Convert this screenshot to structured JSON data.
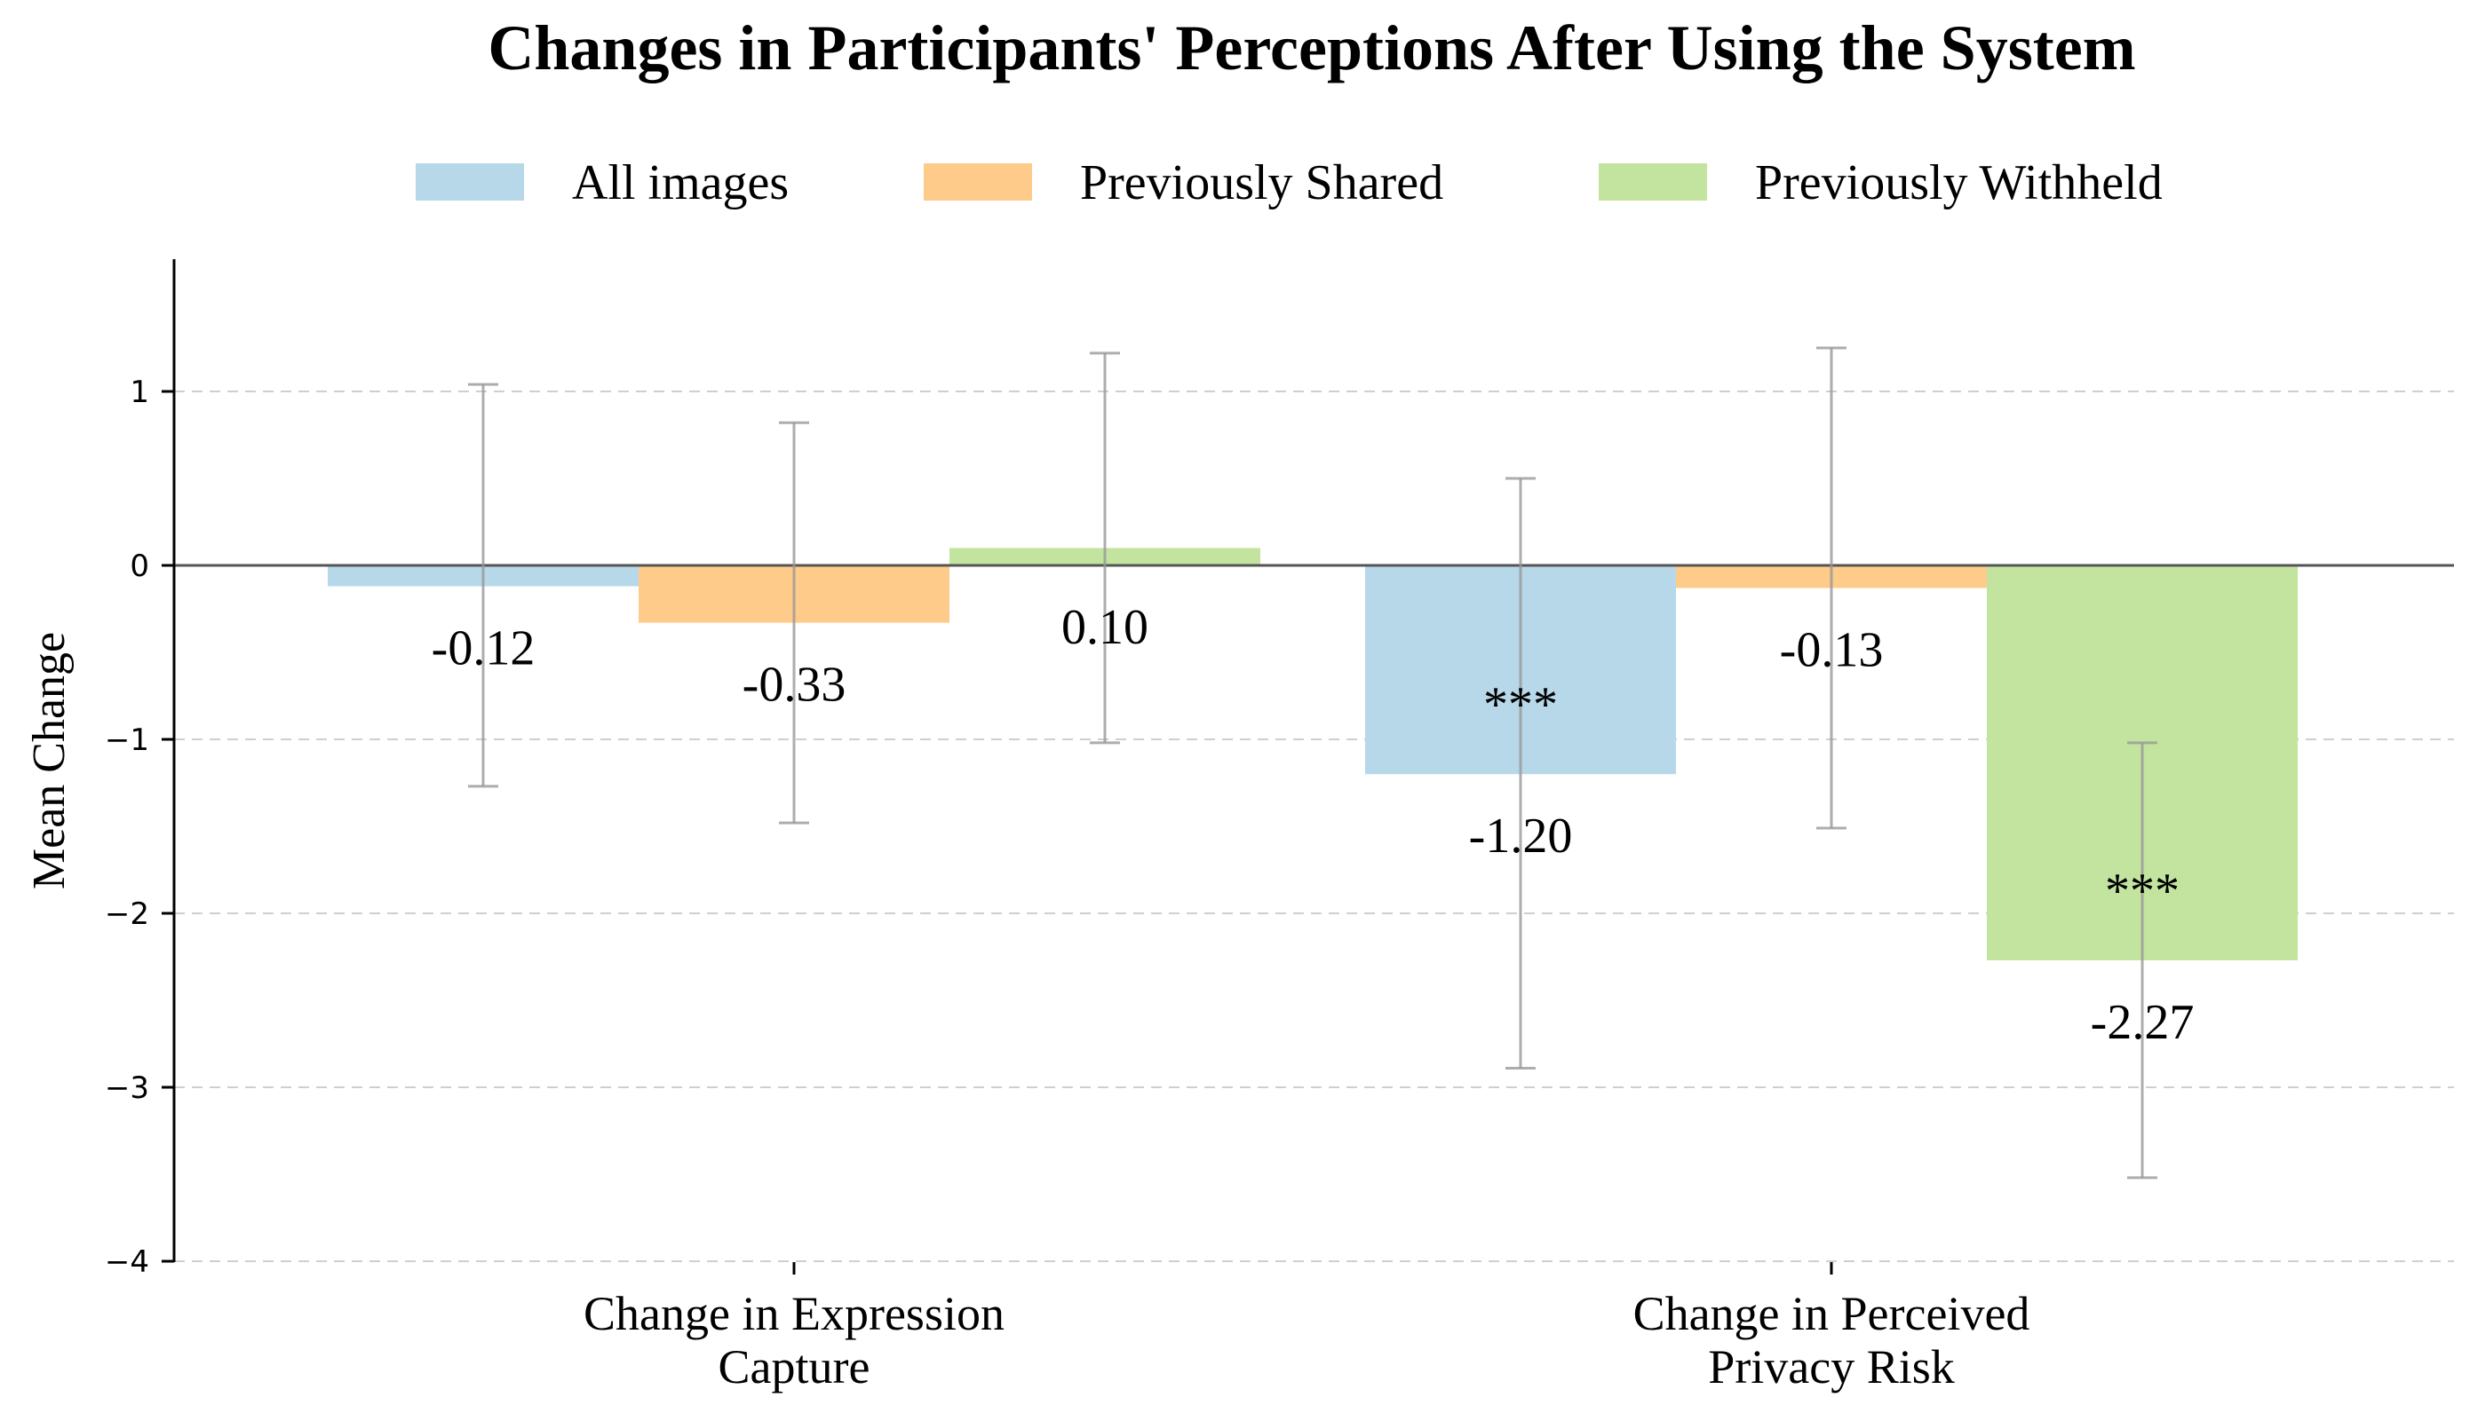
{
  "chart_data": {
    "type": "bar",
    "title": "Changes in Participants' Perceptions After Using the System",
    "xlabel": "",
    "ylabel": "Mean Change",
    "ylim": [
      -4,
      1.75
    ],
    "yticks": [
      1,
      0,
      -1,
      -2,
      -3,
      -4
    ],
    "ytick_labels": [
      "1",
      "0",
      "−1",
      "−2",
      "−3",
      "−4"
    ],
    "grid": "horizontal dashed",
    "legend_position": "top",
    "categories": [
      [
        "Change in Expression",
        "Capture"
      ],
      [
        "Change in Perceived",
        "Privacy Risk"
      ]
    ],
    "series": [
      {
        "name": "All images",
        "color": "#b7d8e9",
        "values": [
          -0.12,
          -1.2
        ],
        "error": [
          [
            -1.27,
            1.04
          ],
          [
            -2.89,
            0.5
          ]
        ],
        "labels": [
          "-0.12",
          "-1.20"
        ],
        "significance": [
          "",
          "***"
        ]
      },
      {
        "name": "Previously Shared",
        "color": "#fecb8b",
        "values": [
          -0.33,
          -0.13
        ],
        "error": [
          [
            -1.48,
            0.82
          ],
          [
            -1.51,
            1.25
          ]
        ],
        "labels": [
          "-0.33",
          "-0.13"
        ],
        "significance": [
          "",
          ""
        ]
      },
      {
        "name": "Previously Withheld",
        "color": "#c2e49f",
        "values": [
          0.1,
          -2.27
        ],
        "error": [
          [
            -1.02,
            1.22
          ],
          [
            -3.52,
            -1.02
          ]
        ],
        "labels": [
          "0.10",
          "-2.27"
        ],
        "significance": [
          "",
          "***"
        ]
      }
    ]
  }
}
